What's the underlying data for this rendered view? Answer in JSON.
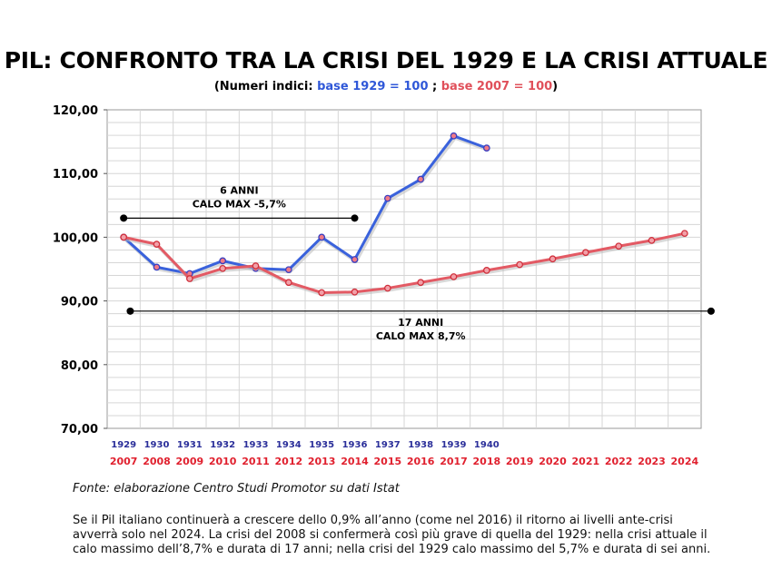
{
  "title": "PIL: CONFRONTO TRA LA CRISI DEL 1929 E LA CRISI ATTUALE",
  "subtitle": {
    "open": "(Numeri indici: ",
    "blue": "base 1929 = 100",
    "sep": " ; ",
    "red": "base 2007 = 100",
    "close": ")"
  },
  "chart_data": {
    "type": "line",
    "ylim": [
      70,
      120
    ],
    "yticks": [
      "70,00",
      "80,00",
      "90,00",
      "100,00",
      "110,00",
      "120,00"
    ],
    "grid": true,
    "x_labels_1929": [
      "1929",
      "1930",
      "1931",
      "1932",
      "1933",
      "1934",
      "1935",
      "1936",
      "1937",
      "1938",
      "1939",
      "1940"
    ],
    "x_labels_2007": [
      "2007",
      "2008",
      "2009",
      "2010",
      "2011",
      "2012",
      "2013",
      "2014",
      "2015",
      "2016",
      "2017",
      "2018",
      "2019",
      "2020",
      "2021",
      "2022",
      "2023",
      "2024"
    ],
    "series": [
      {
        "color": "#3a62dc",
        "values": [
          100,
          95.3,
          94.3,
          96.3,
          95.1,
          94.9,
          100,
          96.5,
          106.1,
          109.1,
          115.9,
          114
        ]
      },
      {
        "color": "#e35a64",
        "values": [
          100,
          98.9,
          93.5,
          95.1,
          95.5,
          92.9,
          91.3,
          91.4,
          92.0,
          92.9,
          93.8,
          94.8,
          95.7,
          96.6,
          97.6,
          98.6,
          99.5,
          100.6
        ]
      }
    ],
    "annotations": [
      {
        "lines": [
          "6 ANNI",
          "CALO MAX -5,7%"
        ],
        "y": 103,
        "from_index": 0,
        "to_index": 7
      },
      {
        "lines": [
          "17 ANNI",
          "CALO MAX 8,7%"
        ],
        "y": 88.4,
        "from_index": 0.2,
        "to_index": 17.8
      }
    ]
  },
  "source": "Fonte: elaborazione Centro Studi Promotor su dati Istat",
  "note": [
    "Se il Pil italiano continuerà a crescere dello 0,9% all’anno (come nel 2016) il ritorno ai livelli ante-crisi",
    "avverrà solo nel 2024. La crisi del 2008 si confermerà così più grave di quella del 1929: nella crisi attuale il",
    "calo massimo dell’8,7% e durata di 17 anni; nella crisi del 1929 calo massimo del 5,7% e durata di sei anni."
  ]
}
